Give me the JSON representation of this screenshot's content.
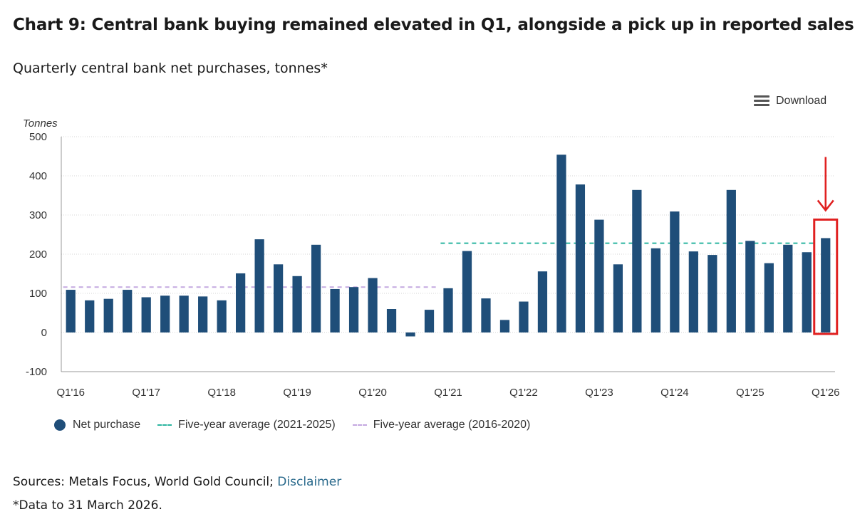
{
  "title": "Chart 9: Central bank buying remained elevated in Q1, alongside a pick up in reported sales",
  "subtitle": "Quarterly central bank net purchases, tonnes*",
  "download_label": "Download",
  "legend": {
    "net_purchase": "Net purchase",
    "avg_2021_2025": "Five-year average (2021-2025)",
    "avg_2016_2020": "Five-year average (2016-2020)"
  },
  "sources": {
    "text": "Sources: Metals Focus, World Gold Council;",
    "link": "Disclaimer"
  },
  "footnote": "*Data to 31 March 2026.",
  "colors": {
    "bar": "#1f4e79",
    "avg_2021_2025": "#2bb5a0",
    "avg_2016_2020": "#c4a8e0",
    "highlight": "#e02020"
  },
  "chart_data": {
    "type": "bar",
    "title": "Chart 9: Central bank buying remained elevated in Q1, alongside a pick up in reported sales",
    "subtitle": "Quarterly central bank net purchases, tonnes*",
    "ylabel": "Tonnes",
    "ylim": [
      -100,
      500
    ],
    "yticks": [
      -100,
      0,
      100,
      200,
      300,
      400,
      500
    ],
    "grid": true,
    "legend_position": "bottom-left",
    "categories": [
      "Q1'16",
      "Q2'16",
      "Q3'16",
      "Q4'16",
      "Q1'17",
      "Q2'17",
      "Q3'17",
      "Q4'17",
      "Q1'18",
      "Q2'18",
      "Q3'18",
      "Q4'18",
      "Q1'19",
      "Q2'19",
      "Q3'19",
      "Q4'19",
      "Q1'20",
      "Q2'20",
      "Q3'20",
      "Q4'20",
      "Q1'21",
      "Q2'21",
      "Q3'21",
      "Q4'21",
      "Q1'22",
      "Q2'22",
      "Q3'22",
      "Q4'22",
      "Q1'23",
      "Q2'23",
      "Q3'23",
      "Q4'23",
      "Q1'24",
      "Q2'24",
      "Q3'24",
      "Q4'24",
      "Q1'25",
      "Q2'25",
      "Q3'25",
      "Q4'25",
      "Q1'26"
    ],
    "x_tick_labels": [
      "Q1'16",
      "Q1'17",
      "Q1'18",
      "Q1'19",
      "Q1'20",
      "Q1'21",
      "Q1'22",
      "Q1'23",
      "Q1'24",
      "Q1'25",
      "Q1'26"
    ],
    "series": [
      {
        "name": "Net purchase",
        "values": [
          109,
          82,
          86,
          109,
          90,
          94,
          94,
          92,
          82,
          151,
          238,
          174,
          144,
          224,
          111,
          116,
          139,
          60,
          -10,
          58,
          113,
          208,
          87,
          32,
          79,
          156,
          454,
          378,
          288,
          174,
          364,
          215,
          309,
          207,
          198,
          364,
          234,
          177,
          224,
          205,
          241
        ]
      }
    ],
    "reference_lines": [
      {
        "name": "Five-year average (2021-2025)",
        "value": 228,
        "from": "Q1'21",
        "to": "Q4'25"
      },
      {
        "name": "Five-year average (2016-2020)",
        "value": 116,
        "from": "Q1'16",
        "to": "Q4'20"
      }
    ],
    "highlight": "Q1'26"
  }
}
